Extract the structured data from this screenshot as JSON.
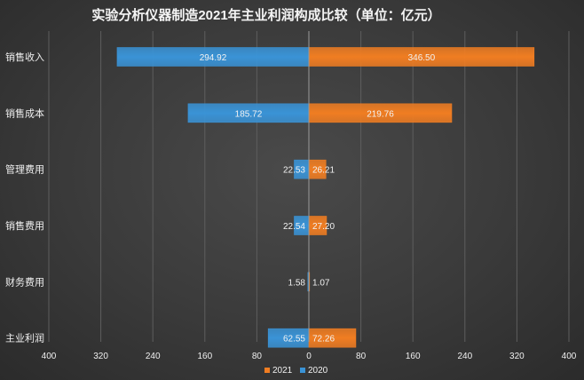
{
  "chart_data": {
    "type": "bar",
    "orientation": "horizontal-butterfly",
    "title": "实验分析仪器制造2021年主业利润构成比较（单位：亿元）",
    "categories": [
      "销售收入",
      "销售成本",
      "管理费用",
      "销售费用",
      "财务费用",
      "主业利润"
    ],
    "series": [
      {
        "name": "2020",
        "side": "left",
        "color": "#3a93d6",
        "values": [
          294.92,
          185.72,
          22.53,
          22.54,
          1.58,
          62.55
        ]
      },
      {
        "name": "2021",
        "side": "right",
        "color": "#f07d22",
        "values": [
          346.5,
          219.76,
          26.21,
          27.2,
          1.07,
          72.26
        ]
      }
    ],
    "data_labels": {
      "2020": [
        "294.92",
        "185.72",
        "22.53",
        "22.54",
        "1.58",
        "62.55"
      ],
      "2021": [
        "346.50",
        "219.76",
        "26.21",
        "27.20",
        "1.07",
        "72.26"
      ]
    },
    "x_ticks": [
      "400",
      "320",
      "240",
      "160",
      "80",
      "0",
      "80",
      "160",
      "240",
      "320",
      "400"
    ],
    "xlim": [
      -400,
      400
    ],
    "grid": true,
    "legend": {
      "position": "bottom",
      "items": [
        "2021",
        "2020"
      ]
    }
  }
}
